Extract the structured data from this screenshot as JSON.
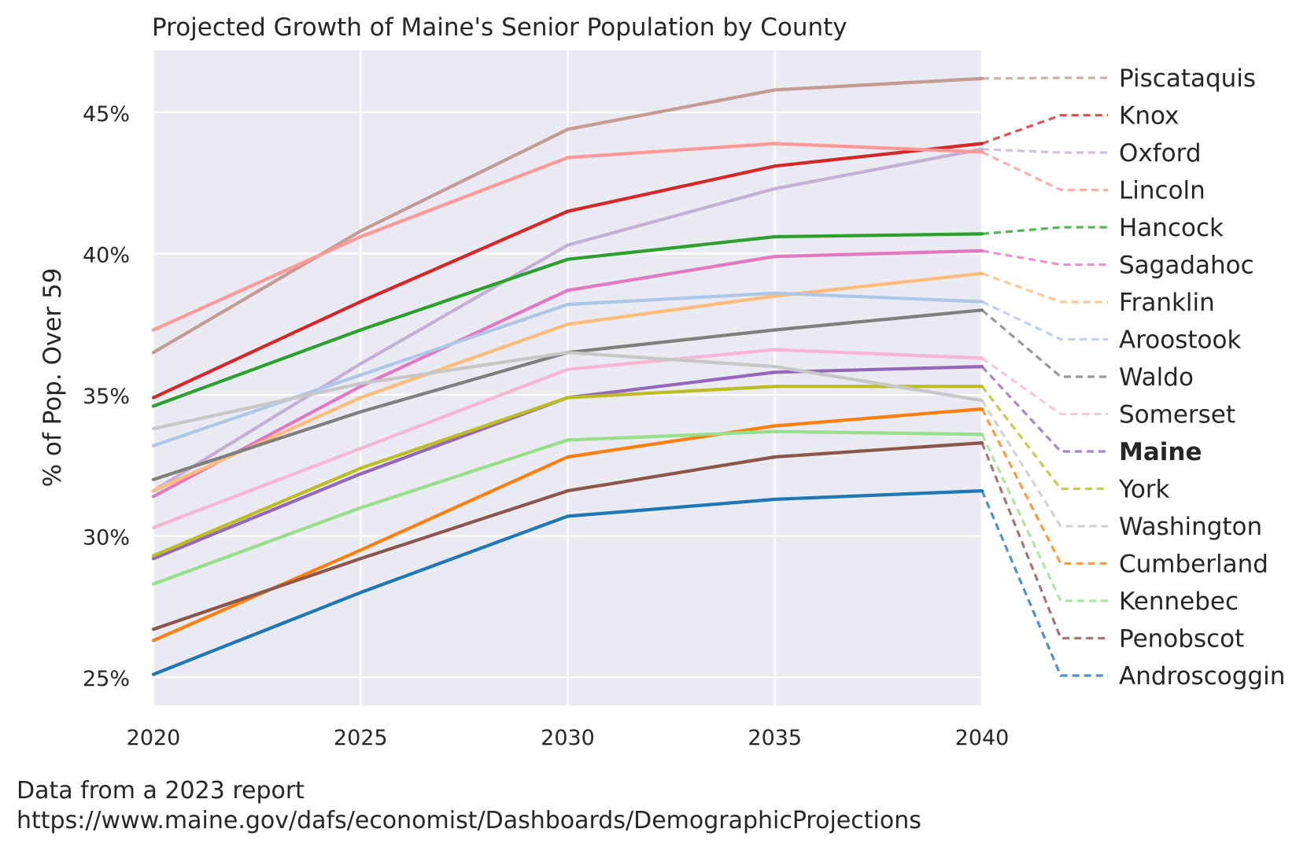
{
  "chart_data": {
    "type": "line",
    "title": "Projected Growth of Maine's Senior Population by County",
    "xlabel": "",
    "ylabel": "% of Pop. Over 59",
    "x": [
      2020,
      2025,
      2030,
      2035,
      2040
    ],
    "x_ticks": [
      "2020",
      "2025",
      "2030",
      "2035",
      "2040"
    ],
    "y_ticks": [
      "25%",
      "30%",
      "35%",
      "40%",
      "45%"
    ],
    "xlim": [
      2020,
      2040
    ],
    "ylim": [
      24.0,
      47.2
    ],
    "grid": true,
    "legend_placement": "right, labels aligned to line end values",
    "series": [
      {
        "name": "Piscataquis",
        "color": "#c49c94",
        "values": [
          36.5,
          40.8,
          44.4,
          45.8,
          46.2
        ]
      },
      {
        "name": "Knox",
        "color": "#d62728",
        "values": [
          34.9,
          38.3,
          41.5,
          43.1,
          43.9
        ]
      },
      {
        "name": "Oxford",
        "color": "#c5b0d5",
        "values": [
          31.6,
          36.1,
          40.3,
          42.3,
          43.7
        ]
      },
      {
        "name": "Lincoln",
        "color": "#ff9896",
        "values": [
          37.3,
          40.6,
          43.4,
          43.9,
          43.6
        ]
      },
      {
        "name": "Hancock",
        "color": "#2ca02c",
        "values": [
          34.6,
          37.3,
          39.8,
          40.6,
          40.7
        ]
      },
      {
        "name": "Sagadahoc",
        "color": "#e377c2",
        "values": [
          31.4,
          35.3,
          38.7,
          39.9,
          40.1
        ]
      },
      {
        "name": "Franklin",
        "color": "#ffbb78",
        "values": [
          31.6,
          34.9,
          37.5,
          38.5,
          39.3
        ]
      },
      {
        "name": "Aroostook",
        "color": "#aec7e8",
        "values": [
          33.2,
          35.7,
          38.2,
          38.6,
          38.3
        ]
      },
      {
        "name": "Waldo",
        "color": "#7f7f7f",
        "values": [
          32.0,
          34.4,
          36.5,
          37.3,
          38.0
        ]
      },
      {
        "name": "Somerset",
        "color": "#f7b6d2",
        "values": [
          30.3,
          33.1,
          35.9,
          36.6,
          36.3
        ]
      },
      {
        "name": "Maine",
        "color": "#9467bd",
        "values": [
          29.2,
          32.2,
          34.9,
          35.8,
          36.0
        ]
      },
      {
        "name": "York",
        "color": "#bcbd22",
        "values": [
          29.3,
          32.4,
          34.9,
          35.3,
          35.3
        ]
      },
      {
        "name": "Washington",
        "color": "#c7c7c7",
        "values": [
          33.8,
          35.4,
          36.5,
          36.0,
          34.8
        ]
      },
      {
        "name": "Cumberland",
        "color": "#ff7f0e",
        "values": [
          26.3,
          29.5,
          32.8,
          33.9,
          34.5
        ]
      },
      {
        "name": "Kennebec",
        "color": "#98df8a",
        "values": [
          28.3,
          31.0,
          33.4,
          33.7,
          33.6
        ]
      },
      {
        "name": "Penobscot",
        "color": "#8c564b",
        "values": [
          26.7,
          29.2,
          31.6,
          32.8,
          33.3
        ]
      },
      {
        "name": "Androscoggin",
        "color": "#1f77b4",
        "values": [
          25.1,
          28.0,
          30.7,
          31.3,
          31.6
        ]
      }
    ],
    "highlighted_series": "Maine"
  },
  "source": {
    "line1": "Data from a 2023 report",
    "line2": "https://www.maine.gov/dafs/economist/Dashboards/DemographicProjections"
  }
}
